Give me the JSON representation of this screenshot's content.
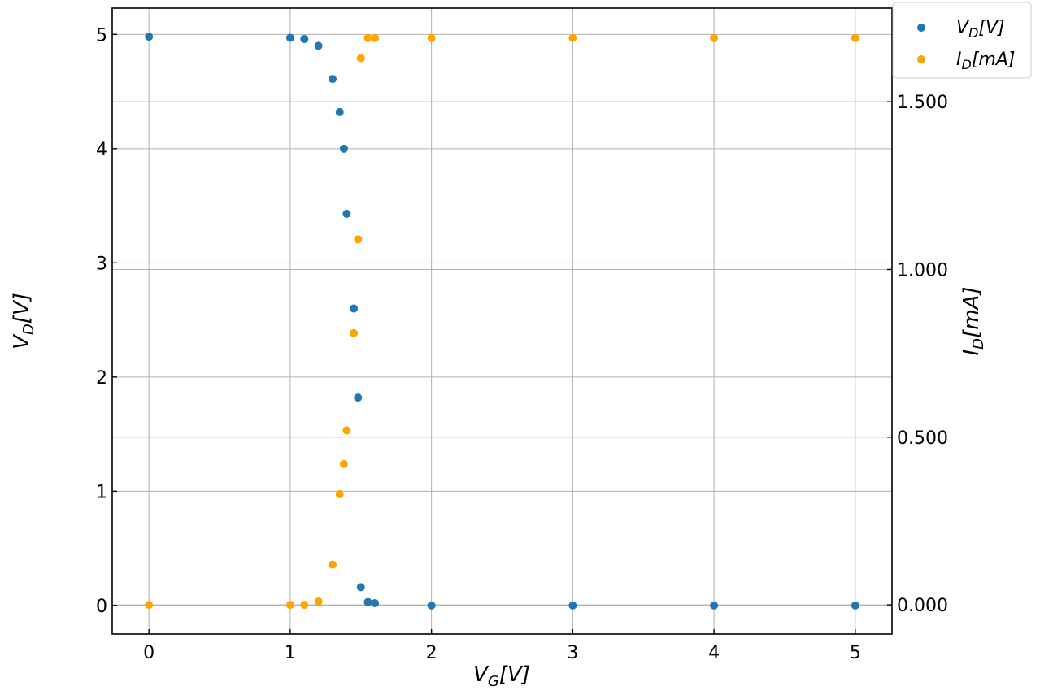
{
  "chart_data": {
    "type": "scatter",
    "x_axis": {
      "label_main": "V",
      "label_sub": "G",
      "label_unit": "[V]",
      "range": [
        -0.26,
        5.26
      ],
      "ticks": [
        0,
        1,
        2,
        3,
        4,
        5
      ],
      "tick_labels": [
        "0",
        "1",
        "2",
        "3",
        "4",
        "5"
      ]
    },
    "y_axis_left": {
      "label_main": "V",
      "label_sub": "D",
      "label_unit": "[V]",
      "range": [
        -0.25,
        5.23
      ],
      "ticks": [
        0,
        1,
        2,
        3,
        4,
        5
      ],
      "tick_labels": [
        "0",
        "1",
        "2",
        "3",
        "4",
        "5"
      ]
    },
    "y_axis_right": {
      "label_main": "I",
      "label_sub": "D",
      "label_unit": "[mA]",
      "range": [
        -0.087,
        1.779
      ],
      "ticks": [
        0.0,
        0.5,
        1.0,
        1.5
      ],
      "tick_labels": [
        "0.000",
        "0.500",
        "1.000",
        "1.500"
      ]
    },
    "grid": true,
    "legend_position": "top-right",
    "series": [
      {
        "name_main": "V",
        "name_sub": "D",
        "name_unit": "[V]",
        "axis": "left",
        "color": "#1f77b4",
        "x": [
          0,
          1.0,
          1.1,
          1.2,
          1.3,
          1.35,
          1.38,
          1.4,
          1.45,
          1.48,
          1.5,
          1.55,
          1.6,
          2,
          3,
          4,
          5
        ],
        "y": [
          4.98,
          4.97,
          4.96,
          4.9,
          4.61,
          4.32,
          4.0,
          3.43,
          2.6,
          1.82,
          0.16,
          0.03,
          0.02,
          0.0,
          0.0,
          0.0,
          0.0
        ]
      },
      {
        "name_main": "I",
        "name_sub": "D",
        "name_unit": "[mA]",
        "axis": "right",
        "color": "#ffa500",
        "x": [
          0,
          1.0,
          1.1,
          1.2,
          1.3,
          1.35,
          1.38,
          1.4,
          1.45,
          1.48,
          1.5,
          1.55,
          1.6,
          2,
          3,
          4,
          5
        ],
        "y": [
          0.0,
          0.0,
          0.0,
          0.01,
          0.12,
          0.33,
          0.42,
          0.52,
          0.81,
          1.09,
          1.63,
          1.69,
          1.69,
          1.69,
          1.69,
          1.69,
          1.69
        ]
      }
    ]
  }
}
